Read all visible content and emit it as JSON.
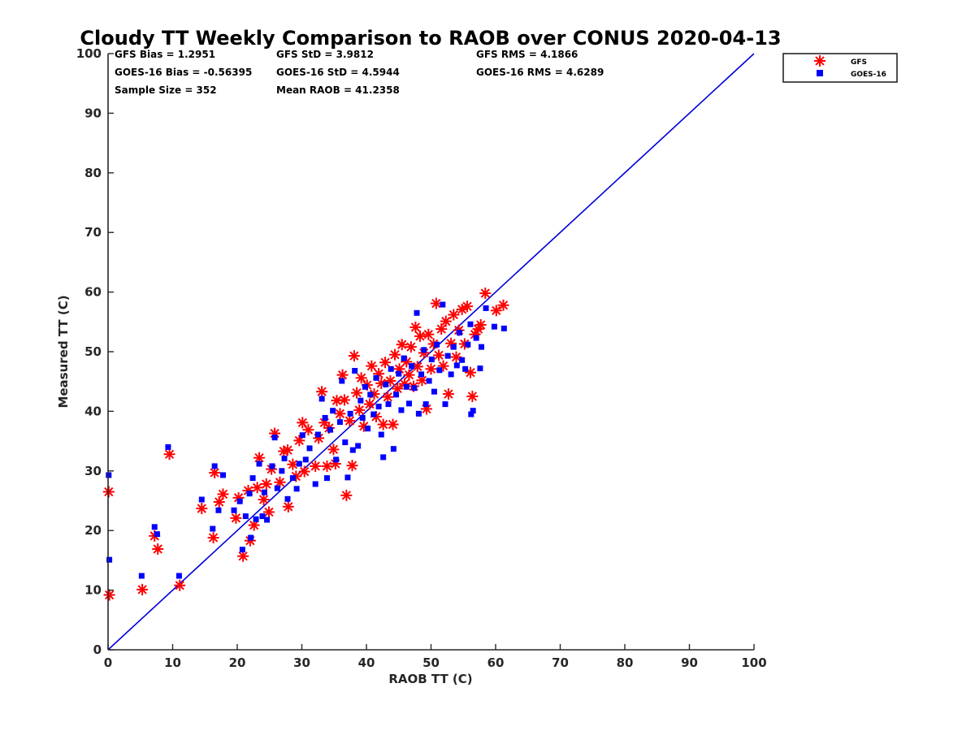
{
  "chart_data": {
    "type": "scatter",
    "title": "Cloudy TT Weekly Comparison to RAOB over CONUS 2020-04-13",
    "xlabel": "RAOB TT (C)",
    "ylabel": "Measured TT (C)",
    "xlim": [
      0,
      100
    ],
    "ylim": [
      0,
      100
    ],
    "xticks": [
      "0",
      "10",
      "20",
      "30",
      "40",
      "50",
      "60",
      "70",
      "80",
      "90",
      "100"
    ],
    "yticks": [
      "0",
      "10",
      "20",
      "30",
      "40",
      "50",
      "60",
      "70",
      "80",
      "90",
      "100"
    ],
    "grid": false,
    "legend_position": "top-right, outside",
    "reference_line": {
      "name": "1:1 line",
      "x": [
        0,
        100
      ],
      "y": [
        0,
        100
      ],
      "color": "#0000dd"
    },
    "stats": [
      "GFS Bias = 1.2951",
      "GFS StD = 3.9812",
      "GFS RMS = 4.1866",
      "GOES-16 Bias = -0.56395",
      "GOES-16 StD = 4.5944",
      "GOES-16 RMS = 4.6289",
      "Sample Size = 352",
      "Mean RAOB = 41.2358"
    ],
    "series": [
      {
        "name": "GFS",
        "marker": "asterisk",
        "color": "#ff0000",
        "points": [
          [
            0.1,
            26.5
          ],
          [
            0.2,
            9.2
          ],
          [
            5.3,
            10.1
          ],
          [
            9.5,
            32.8
          ],
          [
            7.2,
            19.1
          ],
          [
            7.7,
            16.9
          ],
          [
            11.1,
            10.8
          ],
          [
            14.5,
            23.7
          ],
          [
            16.3,
            18.8
          ],
          [
            16.5,
            29.7
          ],
          [
            17.2,
            24.8
          ],
          [
            17.8,
            26.1
          ],
          [
            19.8,
            22.1
          ],
          [
            20.2,
            25.5
          ],
          [
            20.9,
            15.7
          ],
          [
            21.7,
            26.7
          ],
          [
            22.0,
            18.3
          ],
          [
            22.6,
            20.9
          ],
          [
            23.1,
            27.2
          ],
          [
            23.4,
            32.2
          ],
          [
            24.1,
            25.2
          ],
          [
            24.5,
            27.8
          ],
          [
            24.9,
            23.1
          ],
          [
            25.3,
            30.3
          ],
          [
            25.8,
            36.3
          ],
          [
            26.6,
            28.1
          ],
          [
            27.2,
            33.3
          ],
          [
            27.8,
            33.5
          ],
          [
            27.9,
            24.0
          ],
          [
            28.6,
            31.1
          ],
          [
            29.1,
            29.1
          ],
          [
            29.6,
            35.1
          ],
          [
            30.1,
            38.1
          ],
          [
            30.4,
            29.9
          ],
          [
            31.0,
            36.9
          ],
          [
            32.1,
            30.8
          ],
          [
            32.6,
            35.5
          ],
          [
            33.1,
            43.3
          ],
          [
            33.5,
            38.1
          ],
          [
            33.9,
            30.8
          ],
          [
            34.2,
            37.2
          ],
          [
            34.9,
            33.6
          ],
          [
            35.2,
            31.2
          ],
          [
            35.4,
            41.8
          ],
          [
            35.9,
            39.6
          ],
          [
            36.3,
            46.1
          ],
          [
            36.6,
            41.9
          ],
          [
            36.9,
            25.9
          ],
          [
            37.4,
            38.4
          ],
          [
            37.8,
            30.9
          ],
          [
            38.1,
            49.3
          ],
          [
            38.5,
            43.1
          ],
          [
            38.9,
            40.2
          ],
          [
            39.2,
            45.6
          ],
          [
            39.6,
            37.5
          ],
          [
            40.1,
            44.4
          ],
          [
            40.5,
            41.2
          ],
          [
            40.8,
            47.6
          ],
          [
            41.2,
            42.9
          ],
          [
            41.5,
            39.1
          ],
          [
            41.9,
            46.3
          ],
          [
            42.3,
            44.7
          ],
          [
            42.6,
            37.8
          ],
          [
            42.9,
            48.2
          ],
          [
            43.3,
            42.4
          ],
          [
            43.7,
            45.1
          ],
          [
            44.1,
            37.8
          ],
          [
            44.4,
            49.5
          ],
          [
            44.8,
            43.8
          ],
          [
            45.1,
            47.1
          ],
          [
            45.5,
            51.2
          ],
          [
            45.9,
            44.6
          ],
          [
            46.2,
            48.3
          ],
          [
            46.6,
            46.1
          ],
          [
            46.9,
            50.8
          ],
          [
            47.3,
            44.2
          ],
          [
            47.6,
            54.1
          ],
          [
            47.9,
            47.5
          ],
          [
            48.3,
            52.6
          ],
          [
            48.6,
            45.2
          ],
          [
            48.9,
            49.8
          ],
          [
            49.3,
            40.4
          ],
          [
            49.6,
            52.9
          ],
          [
            50.0,
            47.1
          ],
          [
            50.4,
            51.3
          ],
          [
            50.8,
            58.1
          ],
          [
            51.2,
            49.4
          ],
          [
            51.6,
            53.8
          ],
          [
            51.9,
            47.6
          ],
          [
            52.3,
            55.1
          ],
          [
            52.7,
            42.9
          ],
          [
            53.1,
            51.4
          ],
          [
            53.5,
            56.2
          ],
          [
            53.9,
            49.1
          ],
          [
            54.3,
            53.6
          ],
          [
            54.8,
            57.1
          ],
          [
            55.2,
            51.3
          ],
          [
            55.6,
            57.6
          ],
          [
            56.1,
            46.5
          ],
          [
            56.4,
            42.5
          ],
          [
            56.8,
            52.9
          ],
          [
            57.3,
            53.8
          ],
          [
            57.7,
            54.5
          ],
          [
            58.4,
            59.8
          ],
          [
            60.1,
            56.9
          ],
          [
            61.2,
            57.8
          ]
        ]
      },
      {
        "name": "GOES-16",
        "marker": "square",
        "color": "#0000ff",
        "points": [
          [
            0.1,
            29.3
          ],
          [
            0.2,
            15.1
          ],
          [
            5.2,
            12.4
          ],
          [
            7.2,
            20.6
          ],
          [
            7.6,
            19.4
          ],
          [
            9.3,
            34.0
          ],
          [
            11.0,
            12.4
          ],
          [
            14.5,
            25.2
          ],
          [
            16.2,
            20.3
          ],
          [
            16.5,
            30.8
          ],
          [
            17.1,
            23.4
          ],
          [
            17.8,
            29.3
          ],
          [
            19.5,
            23.4
          ],
          [
            20.4,
            24.9
          ],
          [
            20.8,
            16.8
          ],
          [
            21.3,
            22.4
          ],
          [
            21.9,
            26.2
          ],
          [
            22.1,
            18.8
          ],
          [
            22.4,
            28.8
          ],
          [
            22.9,
            21.9
          ],
          [
            23.4,
            31.2
          ],
          [
            23.9,
            22.4
          ],
          [
            24.2,
            26.4
          ],
          [
            24.6,
            21.8
          ],
          [
            25.4,
            30.8
          ],
          [
            25.8,
            35.6
          ],
          [
            26.2,
            27.1
          ],
          [
            26.9,
            30.0
          ],
          [
            27.3,
            32.1
          ],
          [
            27.8,
            25.3
          ],
          [
            28.6,
            28.8
          ],
          [
            29.2,
            27.0
          ],
          [
            29.6,
            31.2
          ],
          [
            30.1,
            36.0
          ],
          [
            30.6,
            31.9
          ],
          [
            31.2,
            33.8
          ],
          [
            32.1,
            27.8
          ],
          [
            32.5,
            36.1
          ],
          [
            33.1,
            42.1
          ],
          [
            33.6,
            38.9
          ],
          [
            33.9,
            28.8
          ],
          [
            34.4,
            36.9
          ],
          [
            34.8,
            40.1
          ],
          [
            35.3,
            31.9
          ],
          [
            35.9,
            38.2
          ],
          [
            36.2,
            45.1
          ],
          [
            36.7,
            34.8
          ],
          [
            37.1,
            28.9
          ],
          [
            37.5,
            39.6
          ],
          [
            37.9,
            33.5
          ],
          [
            38.2,
            46.8
          ],
          [
            38.7,
            34.2
          ],
          [
            39.1,
            41.8
          ],
          [
            39.4,
            38.9
          ],
          [
            39.8,
            44.1
          ],
          [
            40.2,
            37.1
          ],
          [
            40.6,
            42.8
          ],
          [
            41.1,
            39.5
          ],
          [
            41.5,
            45.6
          ],
          [
            41.9,
            40.8
          ],
          [
            42.3,
            36.1
          ],
          [
            42.6,
            32.3
          ],
          [
            43.0,
            44.5
          ],
          [
            43.4,
            41.2
          ],
          [
            43.8,
            47.1
          ],
          [
            44.2,
            33.7
          ],
          [
            44.6,
            42.8
          ],
          [
            45.0,
            46.3
          ],
          [
            45.4,
            40.2
          ],
          [
            45.8,
            48.9
          ],
          [
            46.2,
            44.1
          ],
          [
            46.6,
            41.3
          ],
          [
            47.0,
            47.6
          ],
          [
            47.4,
            43.9
          ],
          [
            47.8,
            56.5
          ],
          [
            48.1,
            39.6
          ],
          [
            48.5,
            46.2
          ],
          [
            48.9,
            50.3
          ],
          [
            49.2,
            41.2
          ],
          [
            49.7,
            45.1
          ],
          [
            50.1,
            48.7
          ],
          [
            50.5,
            43.3
          ],
          [
            50.9,
            51.2
          ],
          [
            51.3,
            46.9
          ],
          [
            51.8,
            57.9
          ],
          [
            52.2,
            41.2
          ],
          [
            52.6,
            49.3
          ],
          [
            53.1,
            46.2
          ],
          [
            53.5,
            50.8
          ],
          [
            54.0,
            47.7
          ],
          [
            54.4,
            53.2
          ],
          [
            54.8,
            48.6
          ],
          [
            55.3,
            47.1
          ],
          [
            55.7,
            51.2
          ],
          [
            56.1,
            54.6
          ],
          [
            56.2,
            39.5
          ],
          [
            56.5,
            40.1
          ],
          [
            57.0,
            52.3
          ],
          [
            57.6,
            47.2
          ],
          [
            57.8,
            50.8
          ],
          [
            58.5,
            57.3
          ],
          [
            59.8,
            54.2
          ],
          [
            61.3,
            53.9
          ]
        ]
      }
    ]
  }
}
